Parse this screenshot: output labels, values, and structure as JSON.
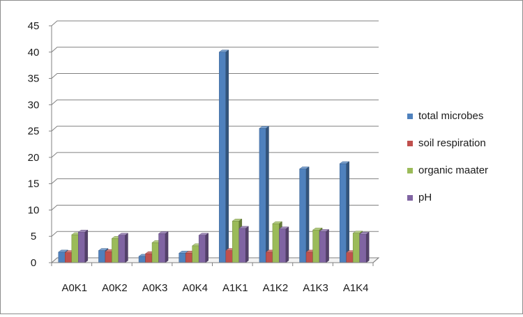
{
  "chart_data": {
    "type": "bar",
    "style": "3d-clustered-column",
    "categories": [
      "A0K1",
      "A0K2",
      "A0K3",
      "A0K4",
      "A1K1",
      "A1K2",
      "A1K3",
      "A1K4"
    ],
    "series": [
      {
        "name": "total microbes",
        "color": "#4f81bd",
        "values": [
          2.0,
          2.3,
          1.2,
          1.8,
          40.0,
          25.5,
          17.8,
          18.8
        ]
      },
      {
        "name": "soil respiration",
        "color": "#c0504d",
        "values": [
          1.9,
          2.1,
          1.7,
          1.8,
          2.3,
          2.0,
          2.0,
          1.9
        ]
      },
      {
        "name": "organic maater",
        "color": "#9bbb59",
        "values": [
          5.3,
          4.6,
          3.8,
          3.2,
          7.9,
          7.4,
          6.2,
          5.6
        ]
      },
      {
        "name": "pH",
        "color": "#8064a2",
        "values": [
          5.8,
          5.2,
          5.5,
          5.2,
          6.5,
          6.4,
          5.9,
          5.4
        ]
      }
    ],
    "ylim": [
      0,
      45
    ],
    "yticks": [
      0,
      5,
      10,
      15,
      20,
      25,
      30,
      35,
      40,
      45
    ],
    "grid": true,
    "legend_position": "right",
    "title": "",
    "xlabel": "",
    "ylabel": ""
  }
}
